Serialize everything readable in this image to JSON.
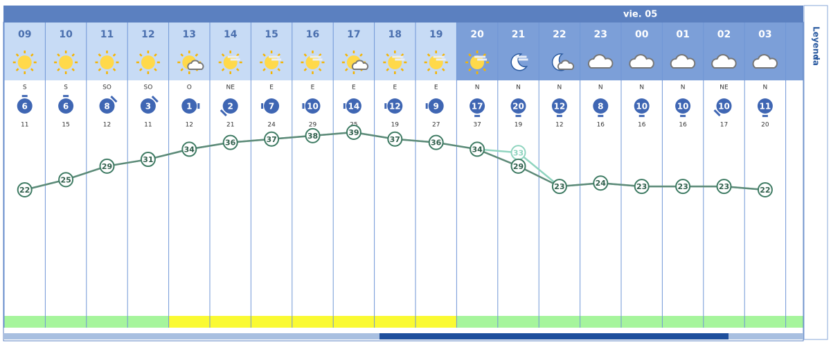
{
  "widget": {
    "legend": "Leyenda",
    "columns": [
      {
        "hour": "09",
        "night": false,
        "icon": "sun",
        "wind_dir": "S",
        "wind_speed": 6,
        "gust": 11,
        "temp": 22,
        "feels": 22,
        "band": "#a6f59c"
      },
      {
        "hour": "10",
        "night": false,
        "icon": "sun",
        "wind_dir": "S",
        "wind_speed": 6,
        "gust": 15,
        "temp": 25,
        "feels": 25,
        "band": "#a6f59c"
      },
      {
        "hour": "11",
        "night": false,
        "icon": "sun",
        "wind_dir": "SO",
        "wind_speed": 8,
        "gust": 12,
        "temp": 29,
        "feels": 29,
        "band": "#a6f59c"
      },
      {
        "hour": "12",
        "night": false,
        "icon": "sun",
        "wind_dir": "SO",
        "wind_speed": 3,
        "gust": 11,
        "temp": 31,
        "feels": 31,
        "band": "#a6f59c"
      },
      {
        "hour": "13",
        "night": false,
        "icon": "sun-cloud",
        "wind_dir": "O",
        "wind_speed": 1,
        "gust": 12,
        "temp": 34,
        "feels": 34,
        "band": "#fafa32"
      },
      {
        "hour": "14",
        "night": false,
        "icon": "sun-haze",
        "wind_dir": "NE",
        "wind_speed": 2,
        "gust": 21,
        "temp": 36,
        "feels": 36,
        "band": "#fafa32"
      },
      {
        "hour": "15",
        "night": false,
        "icon": "sun-haze",
        "wind_dir": "E",
        "wind_speed": 7,
        "gust": 24,
        "temp": 37,
        "feels": 37,
        "band": "#fafa32"
      },
      {
        "hour": "16",
        "night": false,
        "icon": "sun-haze",
        "wind_dir": "E",
        "wind_speed": 10,
        "gust": 29,
        "temp": 38,
        "feels": 38,
        "band": "#fafa32"
      },
      {
        "hour": "17",
        "night": false,
        "icon": "sun-cloud",
        "wind_dir": "E",
        "wind_speed": 14,
        "gust": 25,
        "temp": 39,
        "feels": 39,
        "band": "#fafa32"
      },
      {
        "hour": "18",
        "night": false,
        "icon": "sun-haze",
        "wind_dir": "E",
        "wind_speed": 12,
        "gust": 19,
        "temp": 37,
        "feels": 37,
        "band": "#fafa32"
      },
      {
        "hour": "19",
        "night": false,
        "icon": "sun-haze",
        "wind_dir": "E",
        "wind_speed": 9,
        "gust": 27,
        "temp": 36,
        "feels": 36,
        "band": "#fafa32"
      },
      {
        "hour": "20",
        "night": true,
        "icon": "sun-haze",
        "wind_dir": "N",
        "wind_speed": 17,
        "gust": 37,
        "temp": 34,
        "feels": 34,
        "band": "#a6f59c"
      },
      {
        "hour": "21",
        "night": true,
        "icon": "moon-haze",
        "wind_dir": "N",
        "wind_speed": 20,
        "gust": 19,
        "temp": 29,
        "feels": 33,
        "band": "#a6f59c"
      },
      {
        "hour": "22",
        "night": true,
        "icon": "moon-cloud",
        "wind_dir": "N",
        "wind_speed": 12,
        "gust": 12,
        "temp": 23,
        "feels": 23,
        "band": "#a6f59c"
      },
      {
        "hour": "23",
        "night": true,
        "icon": "cloud",
        "wind_dir": "N",
        "wind_speed": 8,
        "gust": 16,
        "temp": 24,
        "feels": 24,
        "band": "#a6f59c"
      },
      {
        "hour": "00",
        "day": "vie. 05",
        "night": true,
        "icon": "cloud",
        "wind_dir": "N",
        "wind_speed": 10,
        "gust": 16,
        "temp": 23,
        "feels": 23,
        "band": "#a6f59c"
      },
      {
        "hour": "01",
        "night": true,
        "icon": "cloud",
        "wind_dir": "N",
        "wind_speed": 10,
        "gust": 16,
        "temp": 23,
        "feels": 23,
        "band": "#a6f59c"
      },
      {
        "hour": "02",
        "night": true,
        "icon": "cloud",
        "wind_dir": "NE",
        "wind_speed": 10,
        "gust": 17,
        "temp": 23,
        "feels": 23,
        "band": "#a6f59c"
      },
      {
        "hour": "03",
        "night": true,
        "icon": "cloud",
        "wind_dir": "N",
        "wind_speed": 11,
        "gust": 20,
        "temp": 22,
        "feels": 22,
        "band": "#a6f59c"
      }
    ]
  }
}
